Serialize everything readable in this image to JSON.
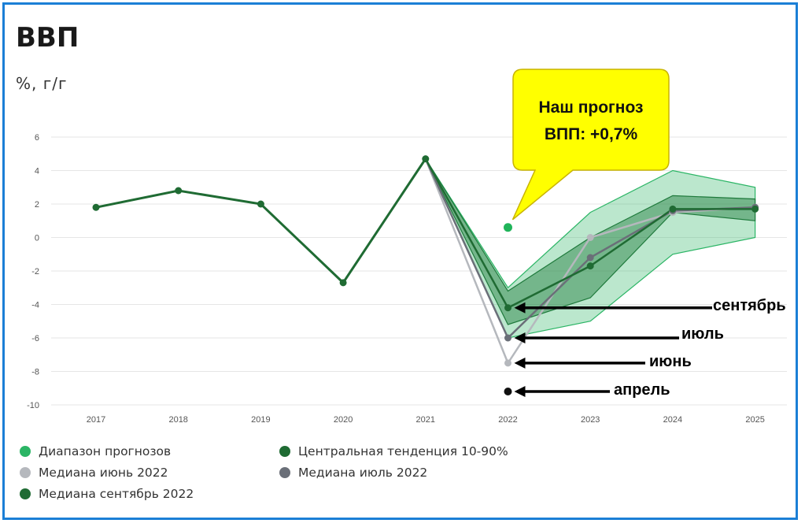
{
  "header": {
    "title": "ВВП",
    "unit": "%, г/г"
  },
  "callout": {
    "line1": "Наш прогноз",
    "line2": "ВПП: +0,7%"
  },
  "arrow_labels": {
    "september": "сентябрь",
    "july": "июль",
    "june": "июнь",
    "april": "апрель"
  },
  "legend": [
    {
      "label": "Диапазон прогнозов",
      "color": "#2bb565"
    },
    {
      "label": "Центральная тенденция 10-90%",
      "color": "#1f6b33"
    },
    {
      "label": "Медиана июнь 2022",
      "color": "#b5b8bd"
    },
    {
      "label": "Медиана июль 2022",
      "color": "#6a6f78"
    },
    {
      "label": "Медиана сентябрь 2022",
      "color": "#1f6b33"
    }
  ],
  "colors": {
    "range_fill": "#2bb565",
    "central_fill": "#1f7a3c",
    "history_line": "#1f6b33",
    "june_line": "#b5b8bd",
    "july_line": "#6a6f78",
    "september_line": "#1f6b33",
    "forecast_point": "#20b45a",
    "callout_bg": "#ffff00",
    "arrow": "#000000"
  },
  "chart_data": {
    "type": "line",
    "title": "ВВП",
    "ylabel": "%, г/г",
    "xlabel": "",
    "x": [
      2017,
      2018,
      2019,
      2020,
      2021,
      2022,
      2023,
      2024,
      2025
    ],
    "xticks": [
      "2017",
      "2018",
      "2019",
      "2020",
      "2021",
      "2022",
      "2023",
      "2024",
      "2025"
    ],
    "ylim": [
      -10,
      6
    ],
    "yticks": [
      6,
      4,
      2,
      0,
      -2,
      -4,
      -6,
      -8,
      -10
    ],
    "grid": true,
    "history": {
      "x": [
        2017,
        2018,
        2019,
        2020,
        2021
      ],
      "values": [
        1.8,
        2.8,
        2.0,
        -2.7,
        4.7
      ]
    },
    "series": [
      {
        "name": "Медиана июнь 2022",
        "x": [
          2021,
          2022,
          2023,
          2024,
          2025
        ],
        "values": [
          4.7,
          -7.5,
          0.0,
          1.5,
          1.8
        ]
      },
      {
        "name": "Медиана июль 2022",
        "x": [
          2021,
          2022,
          2023,
          2024,
          2025
        ],
        "values": [
          4.7,
          -6.0,
          -1.2,
          1.6,
          1.8
        ]
      },
      {
        "name": "Медиана сентябрь 2022",
        "x": [
          2021,
          2022,
          2023,
          2024,
          2025
        ],
        "values": [
          4.7,
          -4.2,
          -1.7,
          1.7,
          1.7
        ]
      }
    ],
    "range_band": {
      "name": "Диапазон прогнозов",
      "x": [
        2021,
        2022,
        2023,
        2024,
        2025
      ],
      "low": [
        4.7,
        -6.0,
        -5.0,
        -1.0,
        0.0
      ],
      "high": [
        4.7,
        -3.0,
        1.5,
        4.0,
        3.0
      ]
    },
    "central_band": {
      "name": "Центральная тенденция 10-90%",
      "x": [
        2021,
        2022,
        2023,
        2024,
        2025
      ],
      "low": [
        4.7,
        -5.2,
        -3.6,
        1.5,
        1.0
      ],
      "high": [
        4.7,
        -3.2,
        0.0,
        2.5,
        2.3
      ]
    },
    "annotations": [
      {
        "label": "Наш прогноз ВПП: +0,7%",
        "x": 2022,
        "y": 0.6
      },
      {
        "label": "сентябрь",
        "x": 2022,
        "y": -4.2
      },
      {
        "label": "июль",
        "x": 2022,
        "y": -6.0
      },
      {
        "label": "июнь",
        "x": 2022,
        "y": -7.5
      },
      {
        "label": "апрель",
        "x": 2022,
        "y": -9.2
      }
    ],
    "april_point": {
      "x": 2022,
      "y": -9.2
    }
  }
}
